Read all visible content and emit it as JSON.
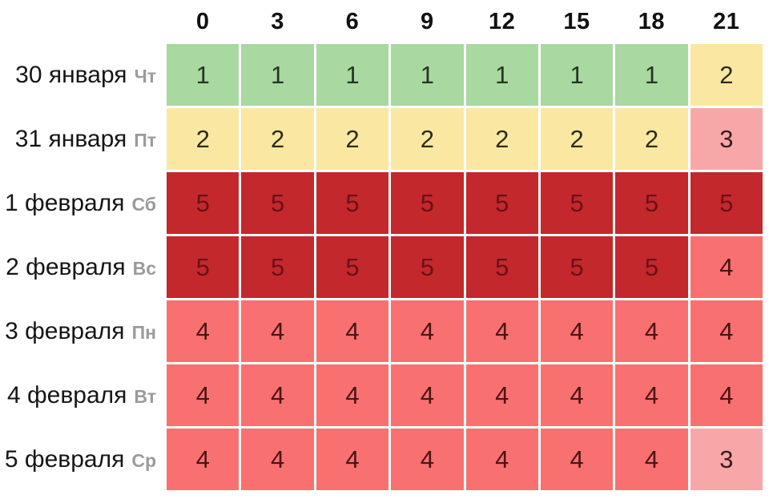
{
  "chart_data": {
    "type": "heatmap",
    "description": "Forecast heatmap table: rows are dates with Russian weekday abbreviations, columns are hours of day (3-hour steps), cell values are activity index levels 1-5 colored from green (low) to dark red (high)",
    "x_labels": [
      "0",
      "3",
      "6",
      "9",
      "12",
      "15",
      "18",
      "21"
    ],
    "rows": [
      {
        "date": "30 января",
        "day": "Чт",
        "values": [
          1,
          1,
          1,
          1,
          1,
          1,
          1,
          2
        ]
      },
      {
        "date": "31 января",
        "day": "Пт",
        "values": [
          2,
          2,
          2,
          2,
          2,
          2,
          2,
          3
        ]
      },
      {
        "date": "1 февраля",
        "day": "Сб",
        "values": [
          5,
          5,
          5,
          5,
          5,
          5,
          5,
          5
        ]
      },
      {
        "date": "2 февраля",
        "day": "Вс",
        "values": [
          5,
          5,
          5,
          5,
          5,
          5,
          5,
          4
        ]
      },
      {
        "date": "3 февраля",
        "day": "Пн",
        "values": [
          4,
          4,
          4,
          4,
          4,
          4,
          4,
          4
        ]
      },
      {
        "date": "4 февраля",
        "day": "Вт",
        "values": [
          4,
          4,
          4,
          4,
          4,
          4,
          4,
          4
        ]
      },
      {
        "date": "5 февраля",
        "day": "Ср",
        "values": [
          4,
          4,
          4,
          4,
          4,
          4,
          4,
          3
        ]
      }
    ],
    "value_colors": {
      "1": {
        "bg": "#a9d8a1",
        "text": "#233623"
      },
      "2": {
        "bg": "#fae8a2",
        "text": "#2e2b1c"
      },
      "3": {
        "bg": "#f8a7a9",
        "text": "#3a1c1c"
      },
      "4": {
        "bg": "#f87170",
        "text": "#4a1315"
      },
      "5": {
        "bg": "#c2282c",
        "text": "#6e1014"
      }
    },
    "layout": {
      "legend": false,
      "grid_gap_color": "#ffffff"
    }
  }
}
